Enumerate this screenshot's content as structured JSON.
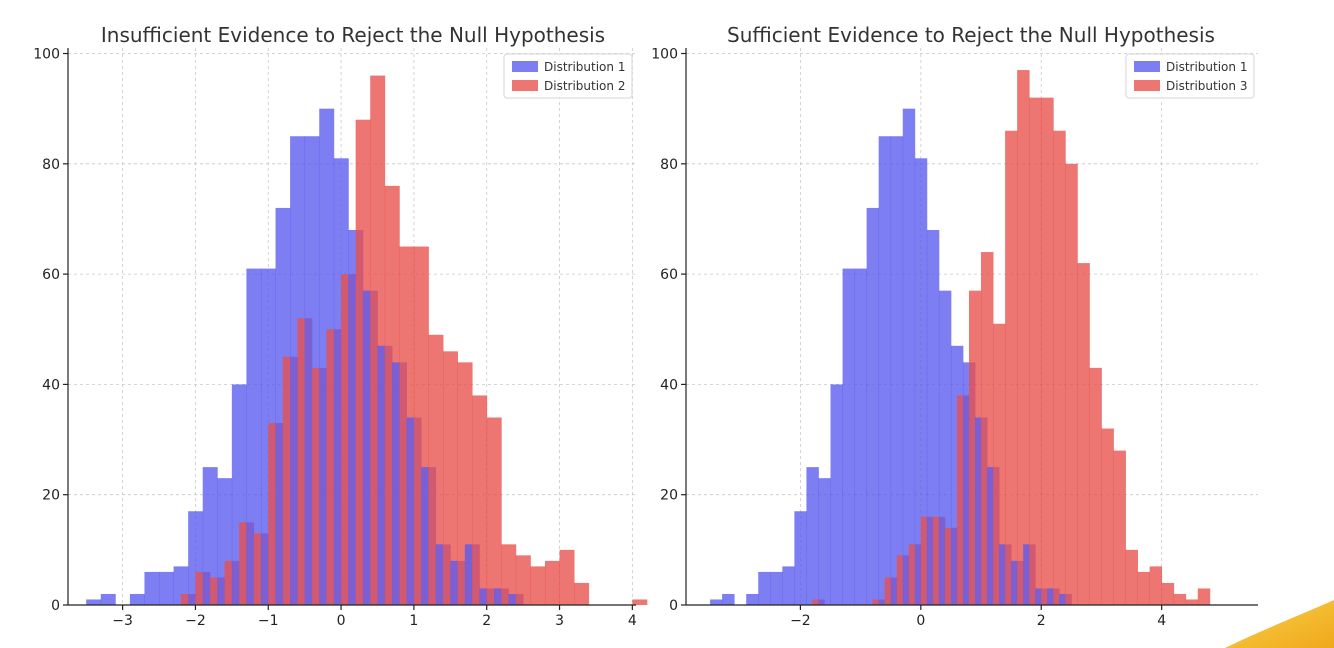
{
  "colors": {
    "blue": "#5a5af0",
    "red": "#e8504a",
    "overlap": "#a23c6a",
    "decoration": "#f5c02e"
  },
  "chart_data": [
    {
      "type": "bar",
      "subtype": "overlaid-histogram",
      "title": "Insufficient Evidence to Reject the Null Hypothesis",
      "xlabel": "",
      "ylabel": "",
      "xlim": [
        -3.75,
        4.05
      ],
      "ylim": [
        0,
        101
      ],
      "xticks": [
        -3,
        -2,
        -1,
        0,
        1,
        2,
        3,
        4
      ],
      "xtick_labels": [
        "−3",
        "−2",
        "−1",
        "0",
        "1",
        "2",
        "3",
        "4"
      ],
      "yticks": [
        0,
        20,
        40,
        60,
        80,
        100
      ],
      "ytick_labels": [
        "0",
        "20",
        "40",
        "60",
        "80",
        "100"
      ],
      "grid": true,
      "legend_position": "top-right",
      "series": [
        {
          "name": "Distribution 1",
          "color": "blue",
          "x_start": -3.5,
          "bin_width": 0.2,
          "values": [
            1,
            2,
            0,
            2,
            6,
            6,
            7,
            17,
            25,
            23,
            40,
            61,
            61,
            72,
            85,
            85,
            90,
            81,
            68,
            57,
            47,
            44,
            34,
            25,
            11,
            8,
            11,
            3,
            3,
            2
          ]
        },
        {
          "name": "Distribution 2",
          "color": "red",
          "x_start": -2.2,
          "bin_width": 0.2,
          "values": [
            2,
            6,
            5,
            8,
            15,
            13,
            33,
            45,
            52,
            43,
            50,
            60,
            88,
            96,
            76,
            65,
            65,
            49,
            46,
            44,
            38,
            34,
            11,
            9,
            7,
            8,
            10,
            4,
            0,
            0,
            0,
            1
          ]
        }
      ]
    },
    {
      "type": "bar",
      "subtype": "overlaid-histogram",
      "title": "Sufficient Evidence to Reject the Null Hypothesis",
      "xlabel": "",
      "ylabel": "",
      "xlim": [
        -3.9,
        5.6
      ],
      "ylim": [
        0,
        101
      ],
      "xticks": [
        -2,
        0,
        2,
        4
      ],
      "xtick_labels": [
        "−2",
        "0",
        "2",
        "4"
      ],
      "yticks": [
        0,
        20,
        40,
        60,
        80,
        100
      ],
      "ytick_labels": [
        "0",
        "20",
        "40",
        "60",
        "80",
        "100"
      ],
      "grid": true,
      "legend_position": "top-right",
      "series": [
        {
          "name": "Distribution 1",
          "color": "blue",
          "x_start": -3.5,
          "bin_width": 0.2,
          "values": [
            1,
            2,
            0,
            2,
            6,
            6,
            7,
            17,
            25,
            23,
            40,
            61,
            61,
            72,
            85,
            85,
            90,
            81,
            68,
            57,
            47,
            44,
            34,
            25,
            11,
            8,
            11,
            3,
            3,
            2
          ]
        },
        {
          "name": "Distribution 3",
          "color": "red",
          "x_start": -1.8,
          "bin_width": 0.2,
          "values": [
            1,
            0,
            0,
            0,
            0,
            1,
            5,
            9,
            11,
            16,
            16,
            14,
            38,
            57,
            64,
            51,
            86,
            97,
            92,
            92,
            86,
            80,
            62,
            43,
            32,
            28,
            10,
            6,
            7,
            4,
            2,
            1,
            3
          ]
        }
      ]
    }
  ]
}
